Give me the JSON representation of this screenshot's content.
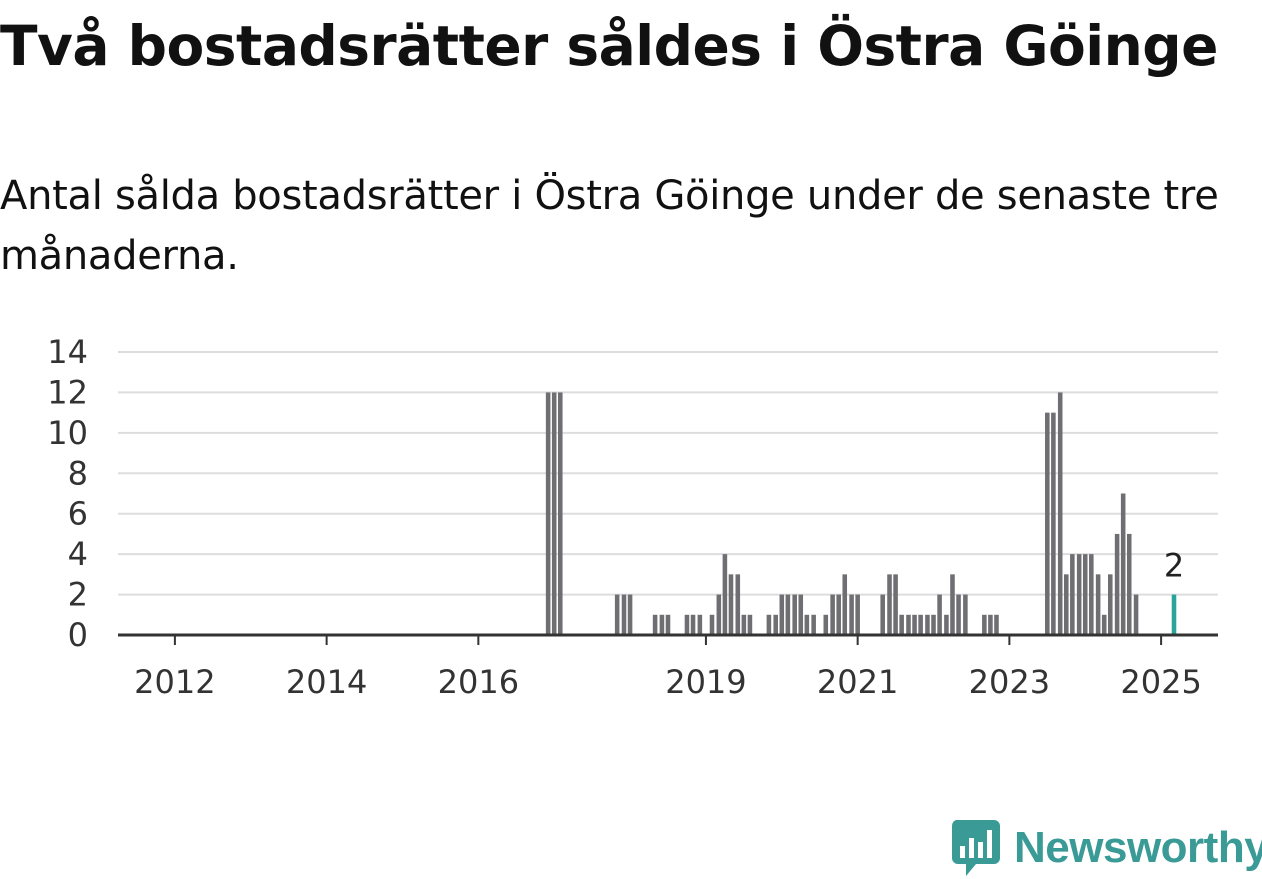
{
  "title": "Två bostadsrätter såldes i Östra Göinge",
  "subtitle": "Antal sålda bostadsrätter i Östra Göinge under de senaste tre månaderna.",
  "brand": {
    "name": "Newsworthy",
    "icon": "newsworthy-logo-icon",
    "color": "#3a9a96"
  },
  "chart_data": {
    "type": "bar",
    "ylim": [
      0,
      14
    ],
    "yticks": [
      0,
      2,
      4,
      6,
      8,
      10,
      12,
      14
    ],
    "xlim": [
      2011.25,
      2025.75
    ],
    "xticks": [
      "2012",
      "2014",
      "2016",
      "2019",
      "2021",
      "2023",
      "2025"
    ],
    "grid": true,
    "bar_color": "#6e6e73",
    "highlight_color": "#2aa39a",
    "bar_width_years": 0.0667,
    "series": [
      {
        "values": [
          {
            "x": 2016.92,
            "y": 12
          },
          {
            "x": 2017.0,
            "y": 12
          },
          {
            "x": 2017.08,
            "y": 12
          },
          {
            "x": 2017.83,
            "y": 2
          },
          {
            "x": 2017.92,
            "y": 2
          },
          {
            "x": 2018.0,
            "y": 2
          },
          {
            "x": 2018.33,
            "y": 1
          },
          {
            "x": 2018.42,
            "y": 1
          },
          {
            "x": 2018.5,
            "y": 1
          },
          {
            "x": 2018.75,
            "y": 1
          },
          {
            "x": 2018.83,
            "y": 1
          },
          {
            "x": 2018.92,
            "y": 1
          },
          {
            "x": 2019.08,
            "y": 1
          },
          {
            "x": 2019.17,
            "y": 2
          },
          {
            "x": 2019.25,
            "y": 4
          },
          {
            "x": 2019.33,
            "y": 3
          },
          {
            "x": 2019.42,
            "y": 3
          },
          {
            "x": 2019.5,
            "y": 1
          },
          {
            "x": 2019.58,
            "y": 1
          },
          {
            "x": 2019.83,
            "y": 1
          },
          {
            "x": 2019.92,
            "y": 1
          },
          {
            "x": 2020.0,
            "y": 2
          },
          {
            "x": 2020.08,
            "y": 2
          },
          {
            "x": 2020.17,
            "y": 2
          },
          {
            "x": 2020.25,
            "y": 2
          },
          {
            "x": 2020.33,
            "y": 1
          },
          {
            "x": 2020.42,
            "y": 1
          },
          {
            "x": 2020.58,
            "y": 1
          },
          {
            "x": 2020.67,
            "y": 2
          },
          {
            "x": 2020.75,
            "y": 2
          },
          {
            "x": 2020.83,
            "y": 3
          },
          {
            "x": 2020.92,
            "y": 2
          },
          {
            "x": 2021.0,
            "y": 2
          },
          {
            "x": 2021.33,
            "y": 2
          },
          {
            "x": 2021.42,
            "y": 3
          },
          {
            "x": 2021.5,
            "y": 3
          },
          {
            "x": 2021.58,
            "y": 1
          },
          {
            "x": 2021.67,
            "y": 1
          },
          {
            "x": 2021.75,
            "y": 1
          },
          {
            "x": 2021.83,
            "y": 1
          },
          {
            "x": 2021.92,
            "y": 1
          },
          {
            "x": 2022.0,
            "y": 1
          },
          {
            "x": 2022.08,
            "y": 2
          },
          {
            "x": 2022.17,
            "y": 1
          },
          {
            "x": 2022.25,
            "y": 3
          },
          {
            "x": 2022.33,
            "y": 2
          },
          {
            "x": 2022.42,
            "y": 2
          },
          {
            "x": 2022.67,
            "y": 1
          },
          {
            "x": 2022.75,
            "y": 1
          },
          {
            "x": 2022.83,
            "y": 1
          },
          {
            "x": 2023.5,
            "y": 11
          },
          {
            "x": 2023.58,
            "y": 11
          },
          {
            "x": 2023.67,
            "y": 12
          },
          {
            "x": 2023.75,
            "y": 3
          },
          {
            "x": 2023.83,
            "y": 4
          },
          {
            "x": 2023.92,
            "y": 4
          },
          {
            "x": 2024.0,
            "y": 4
          },
          {
            "x": 2024.08,
            "y": 4
          },
          {
            "x": 2024.17,
            "y": 3
          },
          {
            "x": 2024.25,
            "y": 1
          },
          {
            "x": 2024.33,
            "y": 3
          },
          {
            "x": 2024.42,
            "y": 5
          },
          {
            "x": 2024.5,
            "y": 7
          },
          {
            "x": 2024.58,
            "y": 5
          },
          {
            "x": 2024.67,
            "y": 2
          }
        ]
      }
    ],
    "highlight": {
      "x": 2025.17,
      "y": 2,
      "label": "2"
    }
  }
}
